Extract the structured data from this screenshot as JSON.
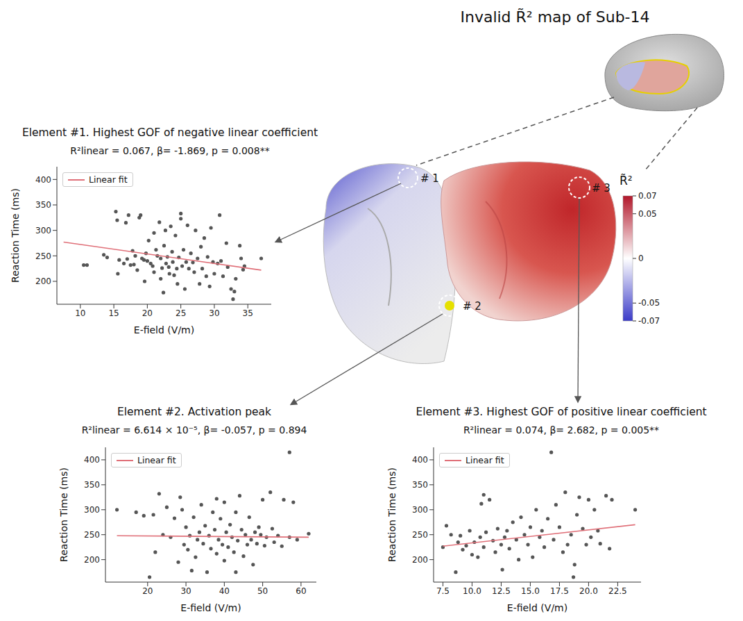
{
  "title": "Invalid R̃² map of Sub-14",
  "colorbar": {
    "label": "R̃²",
    "range": [
      -0.07,
      0.07
    ],
    "ticks": [
      0.07,
      0.05,
      0,
      -0.05,
      -0.07
    ]
  },
  "markers": [
    "# 1",
    "# 2",
    "# 3"
  ],
  "chart_data": [
    {
      "type": "scatter",
      "title": "Element #1. Highest GOF of negative linear coefficient",
      "subtitle": "R²linear = 0.067, β= -1.869, p = 0.008**",
      "x_label": "E-field (V/m)",
      "y_label": "Reaction Time (ms)",
      "xlim": [
        6.5,
        38.5
      ],
      "xticks": [
        10,
        15,
        20,
        25,
        30,
        35
      ],
      "ylim": [
        155,
        425
      ],
      "yticks": [
        200,
        250,
        300,
        350,
        400
      ],
      "grid": false,
      "legend": "upper left",
      "color": "#555555",
      "marker": "circle",
      "x": [
        10.5,
        11,
        13.5,
        14,
        15.3,
        15.5,
        15.6,
        15.8,
        16.5,
        16.8,
        17,
        17.2,
        17.5,
        17.8,
        18,
        18.2,
        18.5,
        18.8,
        19,
        19.2,
        19.5,
        19.6,
        19.8,
        20,
        20.2,
        20.5,
        20.8,
        21,
        21,
        21.3,
        21.5,
        21.8,
        22,
        22,
        22.2,
        22.4,
        22.5,
        22.7,
        22.8,
        23,
        23.2,
        23.3,
        23.5,
        23.7,
        23.8,
        24,
        24.2,
        24.4,
        24.5,
        24.7,
        25,
        25,
        25.2,
        25.4,
        25.6,
        25.8,
        26,
        26.2,
        26.5,
        26.8,
        27,
        27.2,
        27.5,
        27.8,
        28,
        28.2,
        28.5,
        28.8,
        29,
        29.3,
        29.5,
        29.8,
        30,
        30.5,
        30.8,
        31,
        31.3,
        31.8,
        32,
        32.5,
        32.8,
        33,
        33.2,
        33.8,
        34,
        34.3,
        34.5,
        37
      ],
      "values": [
        232,
        232,
        252,
        247,
        337,
        320,
        215,
        242,
        235,
        315,
        244,
        330,
        232,
        260,
        233,
        250,
        222,
        325,
        330,
        245,
        242,
        200,
        255,
        240,
        280,
        235,
        230,
        295,
        218,
        262,
        250,
        316,
        245,
        205,
        226,
        178,
        270,
        300,
        235,
        248,
        228,
        215,
        308,
        258,
        238,
        212,
        290,
        225,
        195,
        247,
        333,
        323,
        230,
        262,
        185,
        238,
        310,
        225,
        255,
        237,
        218,
        300,
        245,
        195,
        268,
        225,
        285,
        210,
        248,
        190,
        305,
        238,
        215,
        235,
        330,
        240,
        210,
        275,
        228,
        185,
        165,
        180,
        205,
        270,
        245,
        223,
        230,
        245
      ],
      "series": [
        {
          "name": "Linear fit",
          "type": "line",
          "color": "#e07079",
          "x": [
            7.5,
            37
          ],
          "values": [
            277,
            222
          ]
        }
      ]
    },
    {
      "type": "scatter",
      "title": "Element #2. Activation peak",
      "subtitle": "R²linear = 6.614 × 10⁻⁵, β= -0.057, p = 0.894",
      "x_label": "E-field (V/m)",
      "y_label": "Reaction Time (ms)",
      "xlim": [
        9,
        64
      ],
      "xticks": [
        20,
        30,
        40,
        50,
        60
      ],
      "ylim": [
        155,
        425
      ],
      "yticks": [
        200,
        250,
        300,
        350,
        400
      ],
      "grid": false,
      "legend": "upper left",
      "color": "#555555",
      "marker": "circle",
      "x": [
        12,
        17,
        19,
        20.5,
        21.5,
        22,
        23,
        24,
        25,
        26,
        27,
        28,
        28.5,
        29,
        29.5,
        30,
        30.5,
        31,
        31.5,
        32,
        32.5,
        33,
        33.5,
        34,
        34.5,
        35,
        35.5,
        36,
        36.5,
        37,
        37.5,
        38,
        38,
        38.5,
        39,
        39.5,
        40,
        40,
        40.5,
        41,
        41.5,
        42,
        42.5,
        43,
        43,
        43.5,
        44,
        44.5,
        45,
        45.5,
        46,
        46.5,
        47,
        47.5,
        48,
        48.5,
        49,
        49.5,
        50,
        50.5,
        51,
        52,
        52.5,
        53,
        54,
        55,
        55.5,
        57,
        57,
        58,
        59,
        62
      ],
      "values": [
        300,
        295,
        288,
        165,
        290,
        215,
        332,
        250,
        305,
        245,
        283,
        195,
        325,
        300,
        230,
        265,
        220,
        248,
        178,
        285,
        205,
        240,
        255,
        310,
        232,
        268,
        175,
        248,
        222,
        295,
        260,
        322,
        212,
        240,
        282,
        230,
        315,
        198,
        255,
        225,
        270,
        245,
        215,
        295,
        175,
        238,
        328,
        260,
        207,
        250,
        230,
        285,
        240,
        190,
        255,
        232,
        265,
        250,
        320,
        228,
        245,
        335,
        262,
        235,
        248,
        227,
        320,
        415,
        245,
        315,
        240,
        252
      ],
      "series": [
        {
          "name": "Linear fit",
          "type": "line",
          "color": "#e07079",
          "x": [
            12,
            62
          ],
          "values": [
            248,
            245
          ]
        }
      ]
    },
    {
      "type": "scatter",
      "title": "Element #3. Highest GOF of positive linear coefficient",
      "subtitle": "R²linear = 0.074, β= 2.682, p = 0.005**",
      "x_label": "E-field (V/m)",
      "y_label": "Reaction Time (ms)",
      "xlim": [
        6.7,
        24.5
      ],
      "xticks": [
        7.5,
        {
          "value": 10,
          "label": "10.0"
        },
        12.5,
        {
          "value": 15,
          "label": "15.0"
        },
        17.5,
        {
          "value": 20,
          "label": "20.0"
        },
        22.5
      ],
      "ylim": [
        155,
        425
      ],
      "yticks": [
        200,
        250,
        300,
        350,
        400
      ],
      "grid": false,
      "legend": "upper left",
      "color": "#555555",
      "marker": "circle",
      "x": [
        7.5,
        7.8,
        8.2,
        8.6,
        8.8,
        9,
        9.2,
        9.5,
        9.8,
        10,
        10.2,
        10.5,
        10.7,
        10.8,
        11,
        11,
        11.2,
        11.5,
        11.8,
        12,
        12.2,
        12.5,
        12.6,
        12.8,
        13,
        13.2,
        13.5,
        13.8,
        14,
        14.2,
        14.5,
        14.8,
        15,
        15.2,
        15.5,
        15.8,
        16,
        16.2,
        16.5,
        16.8,
        17,
        17.2,
        17.5,
        17.8,
        18,
        18.2,
        18.5,
        18.7,
        18.8,
        19,
        19.2,
        19.5,
        19.8,
        20,
        20.2,
        20.5,
        20.8,
        21,
        21.5,
        21.8,
        22,
        24
      ],
      "values": [
        225,
        268,
        250,
        175,
        235,
        248,
        220,
        228,
        258,
        210,
        235,
        205,
        245,
        312,
        330,
        225,
        255,
        320,
        238,
        215,
        262,
        230,
        180,
        245,
        258,
        222,
        275,
        240,
        200,
        285,
        250,
        230,
        265,
        205,
        300,
        245,
        258,
        225,
        282,
        415,
        240,
        310,
        265,
        215,
        335,
        230,
        250,
        165,
        190,
        290,
        325,
        262,
        230,
        320,
        245,
        300,
        258,
        232,
        328,
        222,
        320,
        300
      ],
      "series": [
        {
          "name": "Linear fit",
          "type": "line",
          "color": "#e07079",
          "x": [
            7.5,
            24
          ],
          "values": [
            227,
            270
          ]
        }
      ]
    }
  ]
}
